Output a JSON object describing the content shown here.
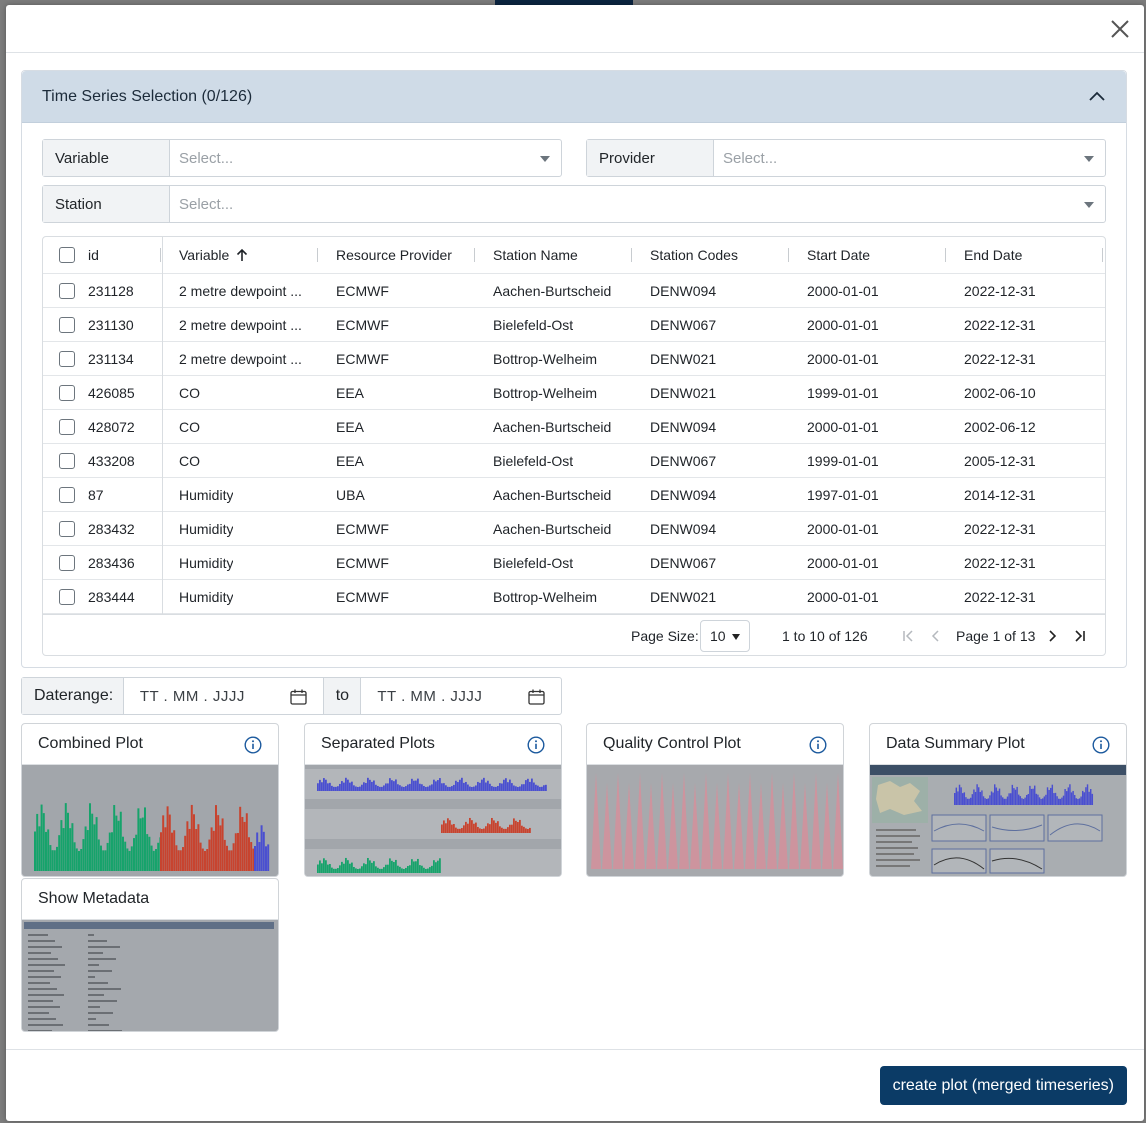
{
  "accordion": {
    "title": "Time Series Selection (0/126)"
  },
  "filters": {
    "variable": {
      "label": "Variable",
      "placeholder": "Select..."
    },
    "provider": {
      "label": "Provider",
      "placeholder": "Select..."
    },
    "station": {
      "label": "Station",
      "placeholder": "Select..."
    }
  },
  "table": {
    "columns": [
      "id",
      "Variable",
      "Resource Provider",
      "Station Name",
      "Station Codes",
      "Start Date",
      "End Date"
    ],
    "sorted_column": "Variable",
    "sort_direction": "ascending",
    "rows": [
      [
        "231128",
        "2 metre dewpoint ...",
        "ECMWF",
        "Aachen-Burtscheid",
        "DENW094",
        "2000-01-01",
        "2022-12-31"
      ],
      [
        "231130",
        "2 metre dewpoint ...",
        "ECMWF",
        "Bielefeld-Ost",
        "DENW067",
        "2000-01-01",
        "2022-12-31"
      ],
      [
        "231134",
        "2 metre dewpoint ...",
        "ECMWF",
        "Bottrop-Welheim",
        "DENW021",
        "2000-01-01",
        "2022-12-31"
      ],
      [
        "426085",
        "CO",
        "EEA",
        "Bottrop-Welheim",
        "DENW021",
        "1999-01-01",
        "2002-06-10"
      ],
      [
        "428072",
        "CO",
        "EEA",
        "Aachen-Burtscheid",
        "DENW094",
        "2000-01-01",
        "2002-06-12"
      ],
      [
        "433208",
        "CO",
        "EEA",
        "Bielefeld-Ost",
        "DENW067",
        "1999-01-01",
        "2005-12-31"
      ],
      [
        "87",
        "Humidity",
        "UBA",
        "Aachen-Burtscheid",
        "DENW094",
        "1997-01-01",
        "2014-12-31"
      ],
      [
        "283432",
        "Humidity",
        "ECMWF",
        "Aachen-Burtscheid",
        "DENW094",
        "2000-01-01",
        "2022-12-31"
      ],
      [
        "283436",
        "Humidity",
        "ECMWF",
        "Bielefeld-Ost",
        "DENW067",
        "2000-01-01",
        "2022-12-31"
      ],
      [
        "283444",
        "Humidity",
        "ECMWF",
        "Bottrop-Welheim",
        "DENW021",
        "2000-01-01",
        "2022-12-31"
      ]
    ]
  },
  "pager": {
    "page_size_label": "Page Size:",
    "page_size": "10",
    "range": "1 to 10 of 126",
    "page_label": "Page 1 of 13"
  },
  "daterange": {
    "label": "Daterange:",
    "from_placeholder": "TT . MM . JJJJ",
    "to_label": "to",
    "to_placeholder": "TT . MM . JJJJ"
  },
  "cards": {
    "combined": "Combined Plot",
    "separated": "Separated Plots",
    "quality": "Quality Control Plot",
    "summary": "Data Summary Plot",
    "metadata": "Show Metadata"
  },
  "footer": {
    "create_label": "create plot (merged timeseries)"
  },
  "colors": {
    "accent": "#0b3b66",
    "accordion_header": "#cfdbe7",
    "series_green": "#16a36b",
    "series_red": "#c8432e",
    "series_blue": "#4a4fd0",
    "series_pink": "#d98e9a"
  }
}
